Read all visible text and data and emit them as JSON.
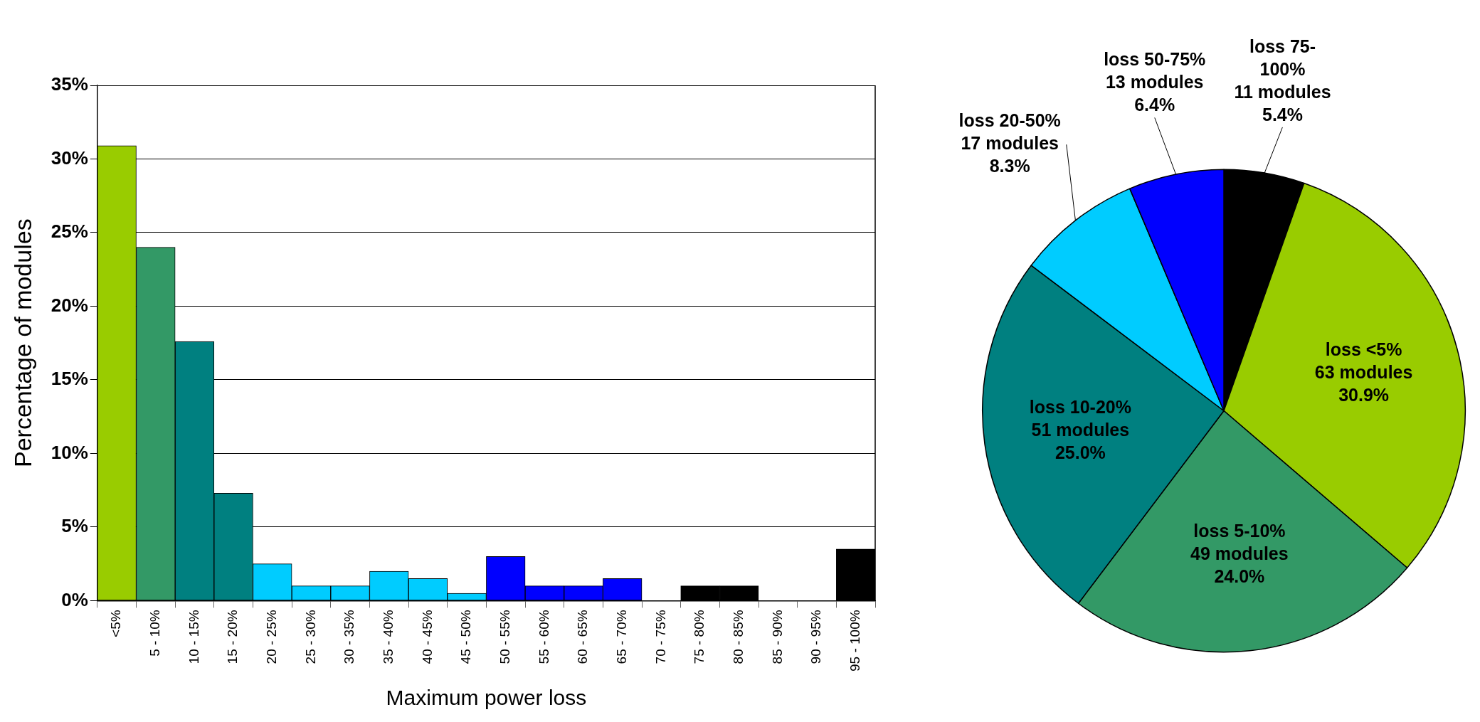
{
  "chart_data": [
    {
      "type": "bar",
      "xlabel": "Maximum power loss",
      "ylabel": "Percentage of modules",
      "categories": [
        "<5%",
        "5 - 10%",
        "10 - 15%",
        "15 - 20%",
        "20 - 25%",
        "25 - 30%",
        "30 - 35%",
        "35 - 40%",
        "40 - 45%",
        "45 - 50%",
        "50 - 55%",
        "55 - 60%",
        "60 - 65%",
        "65 - 70%",
        "70 - 75%",
        "75 - 80%",
        "80 - 85%",
        "85 - 90%",
        "90 - 95%",
        "95 - 100%"
      ],
      "values": [
        30.9,
        24.0,
        17.6,
        7.3,
        2.5,
        1.0,
        1.0,
        2.0,
        1.5,
        0.5,
        3.0,
        1.0,
        1.0,
        1.5,
        0,
        1.0,
        1.0,
        0,
        0,
        3.5
      ],
      "colors": [
        "#99cc00",
        "#339966",
        "#008080",
        "#008080",
        "#00ccff",
        "#00ccff",
        "#00ccff",
        "#00ccff",
        "#00ccff",
        "#00ccff",
        "#0000ff",
        "#0000ff",
        "#0000ff",
        "#0000ff",
        "#000000",
        "#000000",
        "#000000",
        "#000000",
        "#000000",
        "#000000"
      ],
      "ylim": [
        0,
        35
      ],
      "yticks": [
        {
          "value": 0,
          "label": "0%"
        },
        {
          "value": 5,
          "label": "5%"
        },
        {
          "value": 10,
          "label": "10%"
        },
        {
          "value": 15,
          "label": "15%"
        },
        {
          "value": 20,
          "label": "20%"
        },
        {
          "value": 25,
          "label": "25%"
        },
        {
          "value": 30,
          "label": "30%"
        },
        {
          "value": 35,
          "label": "35%"
        }
      ],
      "grid": "y"
    },
    {
      "type": "pie",
      "categories": [
        "loss 75-100%",
        "loss <5%",
        "loss 5-10%",
        "loss 10-20%",
        "loss 20-50%",
        "loss 50-75%"
      ],
      "values": [
        11,
        63,
        49,
        51,
        17,
        13
      ],
      "colors": [
        "#000000",
        "#99cc00",
        "#339966",
        "#008080",
        "#00ccff",
        "#0000ff"
      ],
      "value_labels": [
        "11 modules\n5.4%",
        "63 modules\n30.9%",
        "49 modules\n24.0%",
        "51 modules\n25.0%",
        "17 modules\n8.3%",
        "13 modules\n6.4%"
      ]
    }
  ]
}
